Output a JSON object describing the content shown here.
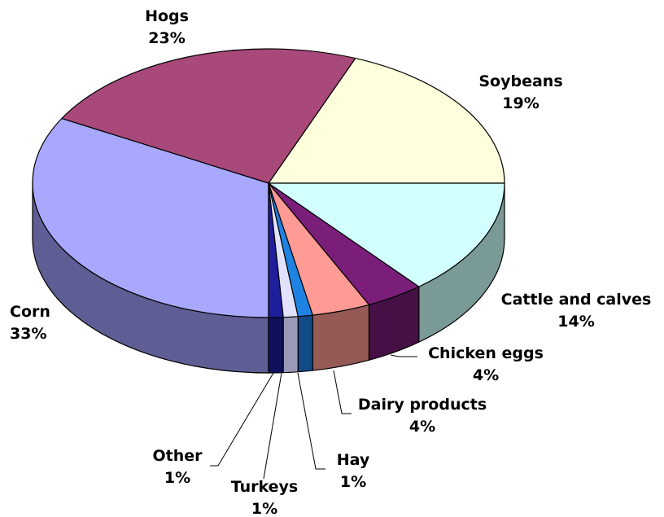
{
  "chart_data": {
    "type": "pie",
    "title": "",
    "slices": [
      {
        "label": "Soybeans",
        "value": 19,
        "value_label": "19%",
        "color": "#FFFFDD",
        "side_color": "#A8A890"
      },
      {
        "label": "Hogs",
        "value": 23,
        "value_label": "23%",
        "color": "#A8497A",
        "side_color": "#6E2F50"
      },
      {
        "label": "Corn",
        "value": 33,
        "value_label": "33%",
        "color": "#A8A8FF",
        "side_color": "#5E5E94"
      },
      {
        "label": "Other",
        "value": 1,
        "value_label": "1%",
        "color": "#1F1F9E",
        "side_color": "#10105C"
      },
      {
        "label": "Turkeys",
        "value": 1,
        "value_label": "1%",
        "color": "#E2E2FF",
        "side_color": "#9A9AB8"
      },
      {
        "label": "Hay",
        "value": 1,
        "value_label": "1%",
        "color": "#1E82E2",
        "side_color": "#124C86"
      },
      {
        "label": "Dairy products",
        "value": 4,
        "value_label": "4%",
        "color": "#FF9A94",
        "side_color": "#955A56"
      },
      {
        "label": "Chicken eggs",
        "value": 4,
        "value_label": "4%",
        "color": "#7A1E7A",
        "side_color": "#460F46"
      },
      {
        "label": "Cattle and calves",
        "value": 14,
        "value_label": "14%",
        "color": "#D2FFFF",
        "side_color": "#7A9A97"
      }
    ],
    "start_angle_deg": 0,
    "direction": "counterclockwise",
    "style": "3d-exploded-none",
    "legend": "none"
  }
}
